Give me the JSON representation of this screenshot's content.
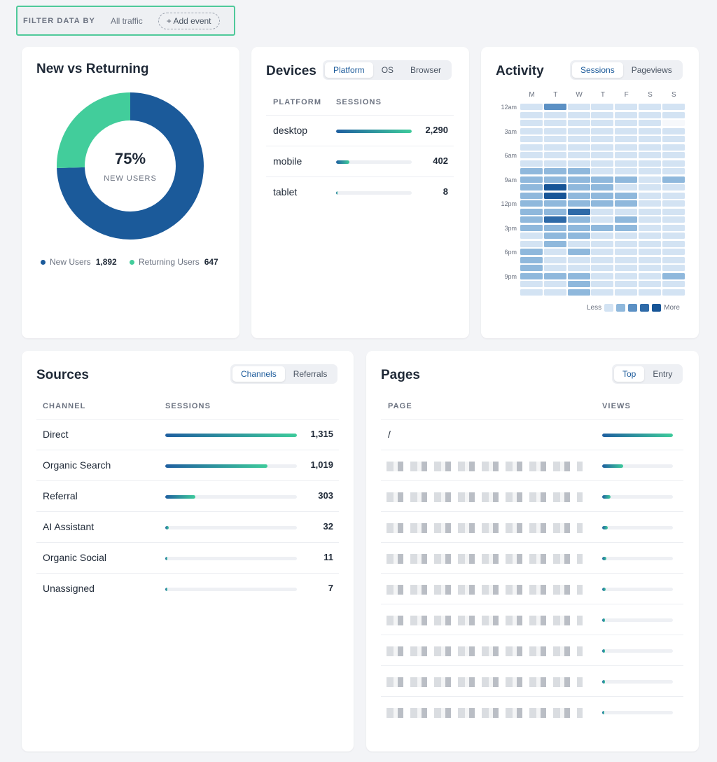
{
  "filter": {
    "label": "FILTER DATA BY",
    "traffic": "All traffic",
    "add_event": "+ Add event"
  },
  "new_vs_returning": {
    "title": "New vs Returning",
    "center_value": "75%",
    "center_label": "NEW USERS",
    "new_users": {
      "label": "New Users",
      "value": "1,892",
      "count": 1892,
      "color": "#1b5a9a"
    },
    "returning_users": {
      "label": "Returning Users",
      "value": "647",
      "count": 647,
      "color": "#42cd9b"
    }
  },
  "devices": {
    "title": "Devices",
    "tabs": [
      {
        "label": "Platform",
        "active": true
      },
      {
        "label": "OS",
        "active": false
      },
      {
        "label": "Browser",
        "active": false
      }
    ],
    "col_platform": "PLATFORM",
    "col_sessions": "SESSIONS",
    "rows": [
      {
        "label": "desktop",
        "value": "2,290",
        "fraction": 1.0
      },
      {
        "label": "mobile",
        "value": "402",
        "fraction": 0.18
      },
      {
        "label": "tablet",
        "value": "8",
        "fraction": 0.01
      }
    ]
  },
  "activity": {
    "title": "Activity",
    "tabs": [
      {
        "label": "Sessions",
        "active": true
      },
      {
        "label": "Pageviews",
        "active": false
      }
    ],
    "days": [
      "M",
      "T",
      "W",
      "T",
      "F",
      "S",
      "S"
    ],
    "hour_labels": [
      {
        "label": "12am",
        "hour": 0
      },
      {
        "label": "3am",
        "hour": 3
      },
      {
        "label": "6am",
        "hour": 6
      },
      {
        "label": "9am",
        "hour": 9
      },
      {
        "label": "12pm",
        "hour": 12
      },
      {
        "label": "3pm",
        "hour": 15
      },
      {
        "label": "6pm",
        "hour": 18
      },
      {
        "label": "9pm",
        "hour": 21
      }
    ],
    "levels": [
      [
        1,
        3,
        1,
        1,
        1,
        1,
        1
      ],
      [
        1,
        1,
        1,
        1,
        1,
        1,
        1
      ],
      [
        1,
        1,
        1,
        1,
        1,
        1,
        0
      ],
      [
        1,
        1,
        1,
        1,
        1,
        1,
        1
      ],
      [
        1,
        1,
        1,
        1,
        1,
        1,
        1
      ],
      [
        1,
        1,
        1,
        1,
        1,
        1,
        1
      ],
      [
        1,
        1,
        1,
        1,
        1,
        1,
        1
      ],
      [
        1,
        1,
        1,
        1,
        1,
        1,
        1
      ],
      [
        2,
        2,
        2,
        1,
        1,
        1,
        1
      ],
      [
        2,
        2,
        2,
        2,
        2,
        1,
        2
      ],
      [
        2,
        5,
        2,
        2,
        1,
        1,
        1
      ],
      [
        2,
        5,
        2,
        2,
        2,
        1,
        1
      ],
      [
        2,
        2,
        2,
        2,
        2,
        1,
        1
      ],
      [
        2,
        2,
        4,
        1,
        1,
        1,
        1
      ],
      [
        2,
        4,
        2,
        1,
        2,
        1,
        1
      ],
      [
        2,
        2,
        2,
        2,
        2,
        1,
        1
      ],
      [
        1,
        2,
        2,
        1,
        1,
        1,
        1
      ],
      [
        1,
        2,
        1,
        1,
        1,
        1,
        1
      ],
      [
        2,
        1,
        2,
        1,
        1,
        1,
        1
      ],
      [
        2,
        1,
        1,
        1,
        1,
        1,
        1
      ],
      [
        2,
        1,
        1,
        1,
        1,
        1,
        1
      ],
      [
        2,
        2,
        2,
        1,
        1,
        1,
        2
      ],
      [
        1,
        1,
        2,
        1,
        1,
        1,
        1
      ],
      [
        1,
        1,
        2,
        1,
        1,
        1,
        1
      ]
    ],
    "level_colors": [
      "#f6f8fb",
      "#d3e3f3",
      "#8fb8dc",
      "#5b90c4",
      "#2e6aa8",
      "#175597"
    ],
    "legend_less": "Less",
    "legend_more": "More"
  },
  "sources": {
    "title": "Sources",
    "tabs": [
      {
        "label": "Channels",
        "active": true
      },
      {
        "label": "Referrals",
        "active": false
      }
    ],
    "col_channel": "CHANNEL",
    "col_sessions": "SESSIONS",
    "rows": [
      {
        "label": "Direct",
        "value": "1,315",
        "fraction": 1.0
      },
      {
        "label": "Organic Search",
        "value": "1,019",
        "fraction": 0.775
      },
      {
        "label": "Referral",
        "value": "303",
        "fraction": 0.23
      },
      {
        "label": "AI Assistant",
        "value": "32",
        "fraction": 0.025
      },
      {
        "label": "Organic Social",
        "value": "11",
        "fraction": 0.01
      },
      {
        "label": "Unassigned",
        "value": "7",
        "fraction": 0.008
      }
    ]
  },
  "pages": {
    "title": "Pages",
    "tabs": [
      {
        "label": "Top",
        "active": true
      },
      {
        "label": "Entry",
        "active": false
      }
    ],
    "col_page": "PAGE",
    "col_views": "VIEWS",
    "rows": [
      {
        "label": "/",
        "redacted": false,
        "fraction": 1.0
      },
      {
        "label": "",
        "redacted": true,
        "fraction": 0.3
      },
      {
        "label": "",
        "redacted": true,
        "fraction": 0.12
      },
      {
        "label": "",
        "redacted": true,
        "fraction": 0.08
      },
      {
        "label": "",
        "redacted": true,
        "fraction": 0.06
      },
      {
        "label": "",
        "redacted": true,
        "fraction": 0.05
      },
      {
        "label": "",
        "redacted": true,
        "fraction": 0.04
      },
      {
        "label": "",
        "redacted": true,
        "fraction": 0.04
      },
      {
        "label": "",
        "redacted": true,
        "fraction": 0.035
      },
      {
        "label": "",
        "redacted": true,
        "fraction": 0.03
      }
    ]
  }
}
